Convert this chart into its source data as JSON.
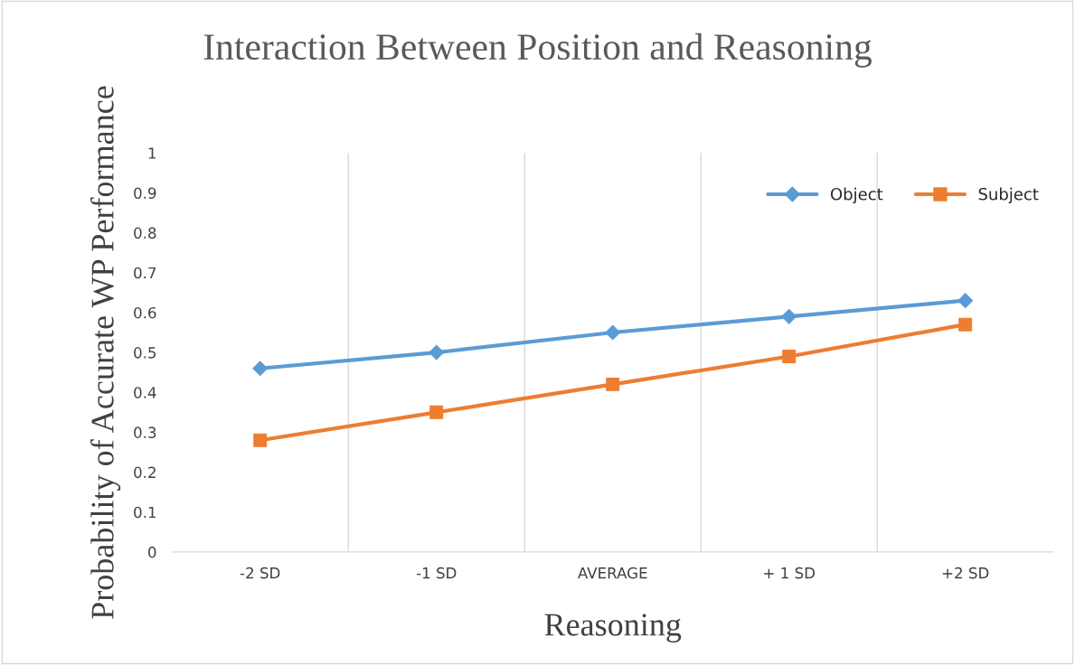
{
  "chart_data": {
    "type": "line",
    "title": "Interaction Between Position and Reasoning",
    "xlabel": "Reasoning",
    "ylabel": "Probability of Accurate WP Performance",
    "categories": [
      "-2 SD",
      "-1 SD",
      "AVERAGE",
      "+ 1 SD",
      "+2 SD"
    ],
    "series": [
      {
        "name": "Object",
        "color": "#5b9bd5",
        "marker": "diamond",
        "values": [
          0.46,
          0.5,
          0.55,
          0.59,
          0.63
        ]
      },
      {
        "name": "Subject",
        "color": "#ed7d31",
        "marker": "square",
        "values": [
          0.28,
          0.35,
          0.42,
          0.49,
          0.57
        ]
      }
    ],
    "ylim": [
      0,
      1
    ],
    "yticks": [
      0,
      0.1,
      0.2,
      0.3,
      0.4,
      0.5,
      0.6,
      0.7,
      0.8,
      0.9,
      1
    ],
    "grid": "x",
    "legend": "top right",
    "line_style": "solid"
  }
}
